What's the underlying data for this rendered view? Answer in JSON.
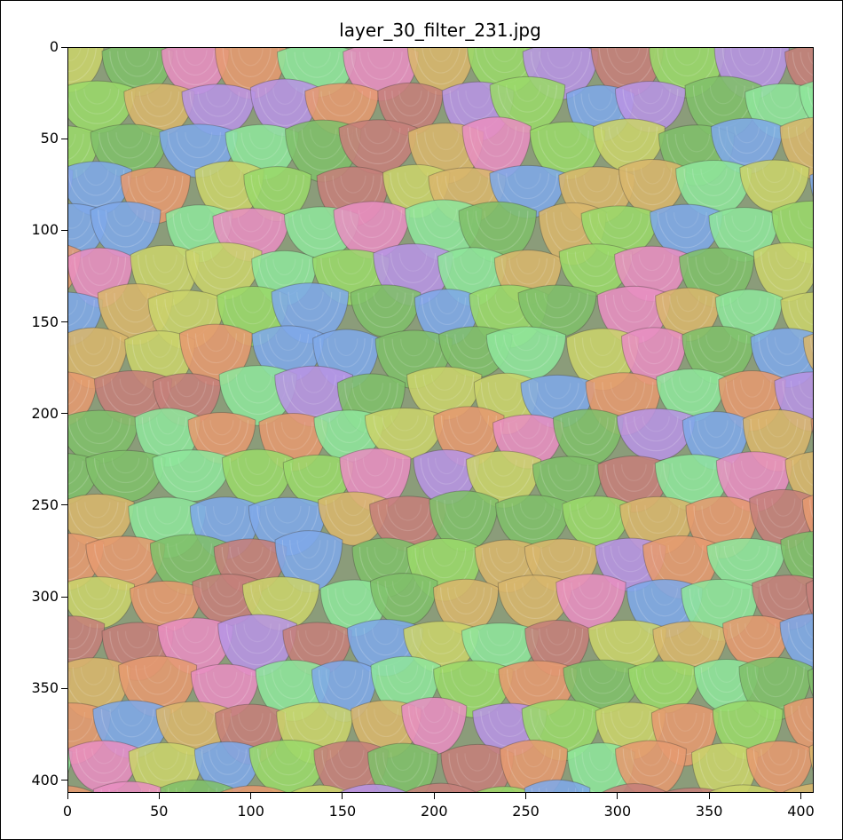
{
  "figure": {
    "title": "layer_30_filter_231.jpg"
  },
  "image": {
    "description_icon": "neural-filter-visualization-image",
    "palette": [
      "#e59a6f",
      "#c9d36b",
      "#7fbf6a",
      "#9ad86a",
      "#b794e4",
      "#7ea8e8",
      "#e78ec0",
      "#d8b66c",
      "#8ee59b",
      "#c57f7a"
    ]
  },
  "axes": {
    "x_ticks": [
      "0",
      "50",
      "100",
      "150",
      "200",
      "250",
      "300",
      "350",
      "400"
    ],
    "y_ticks": [
      "0",
      "50",
      "100",
      "150",
      "200",
      "250",
      "300",
      "350",
      "400"
    ],
    "x_range": [
      0,
      407
    ],
    "y_range": [
      0,
      407
    ]
  }
}
